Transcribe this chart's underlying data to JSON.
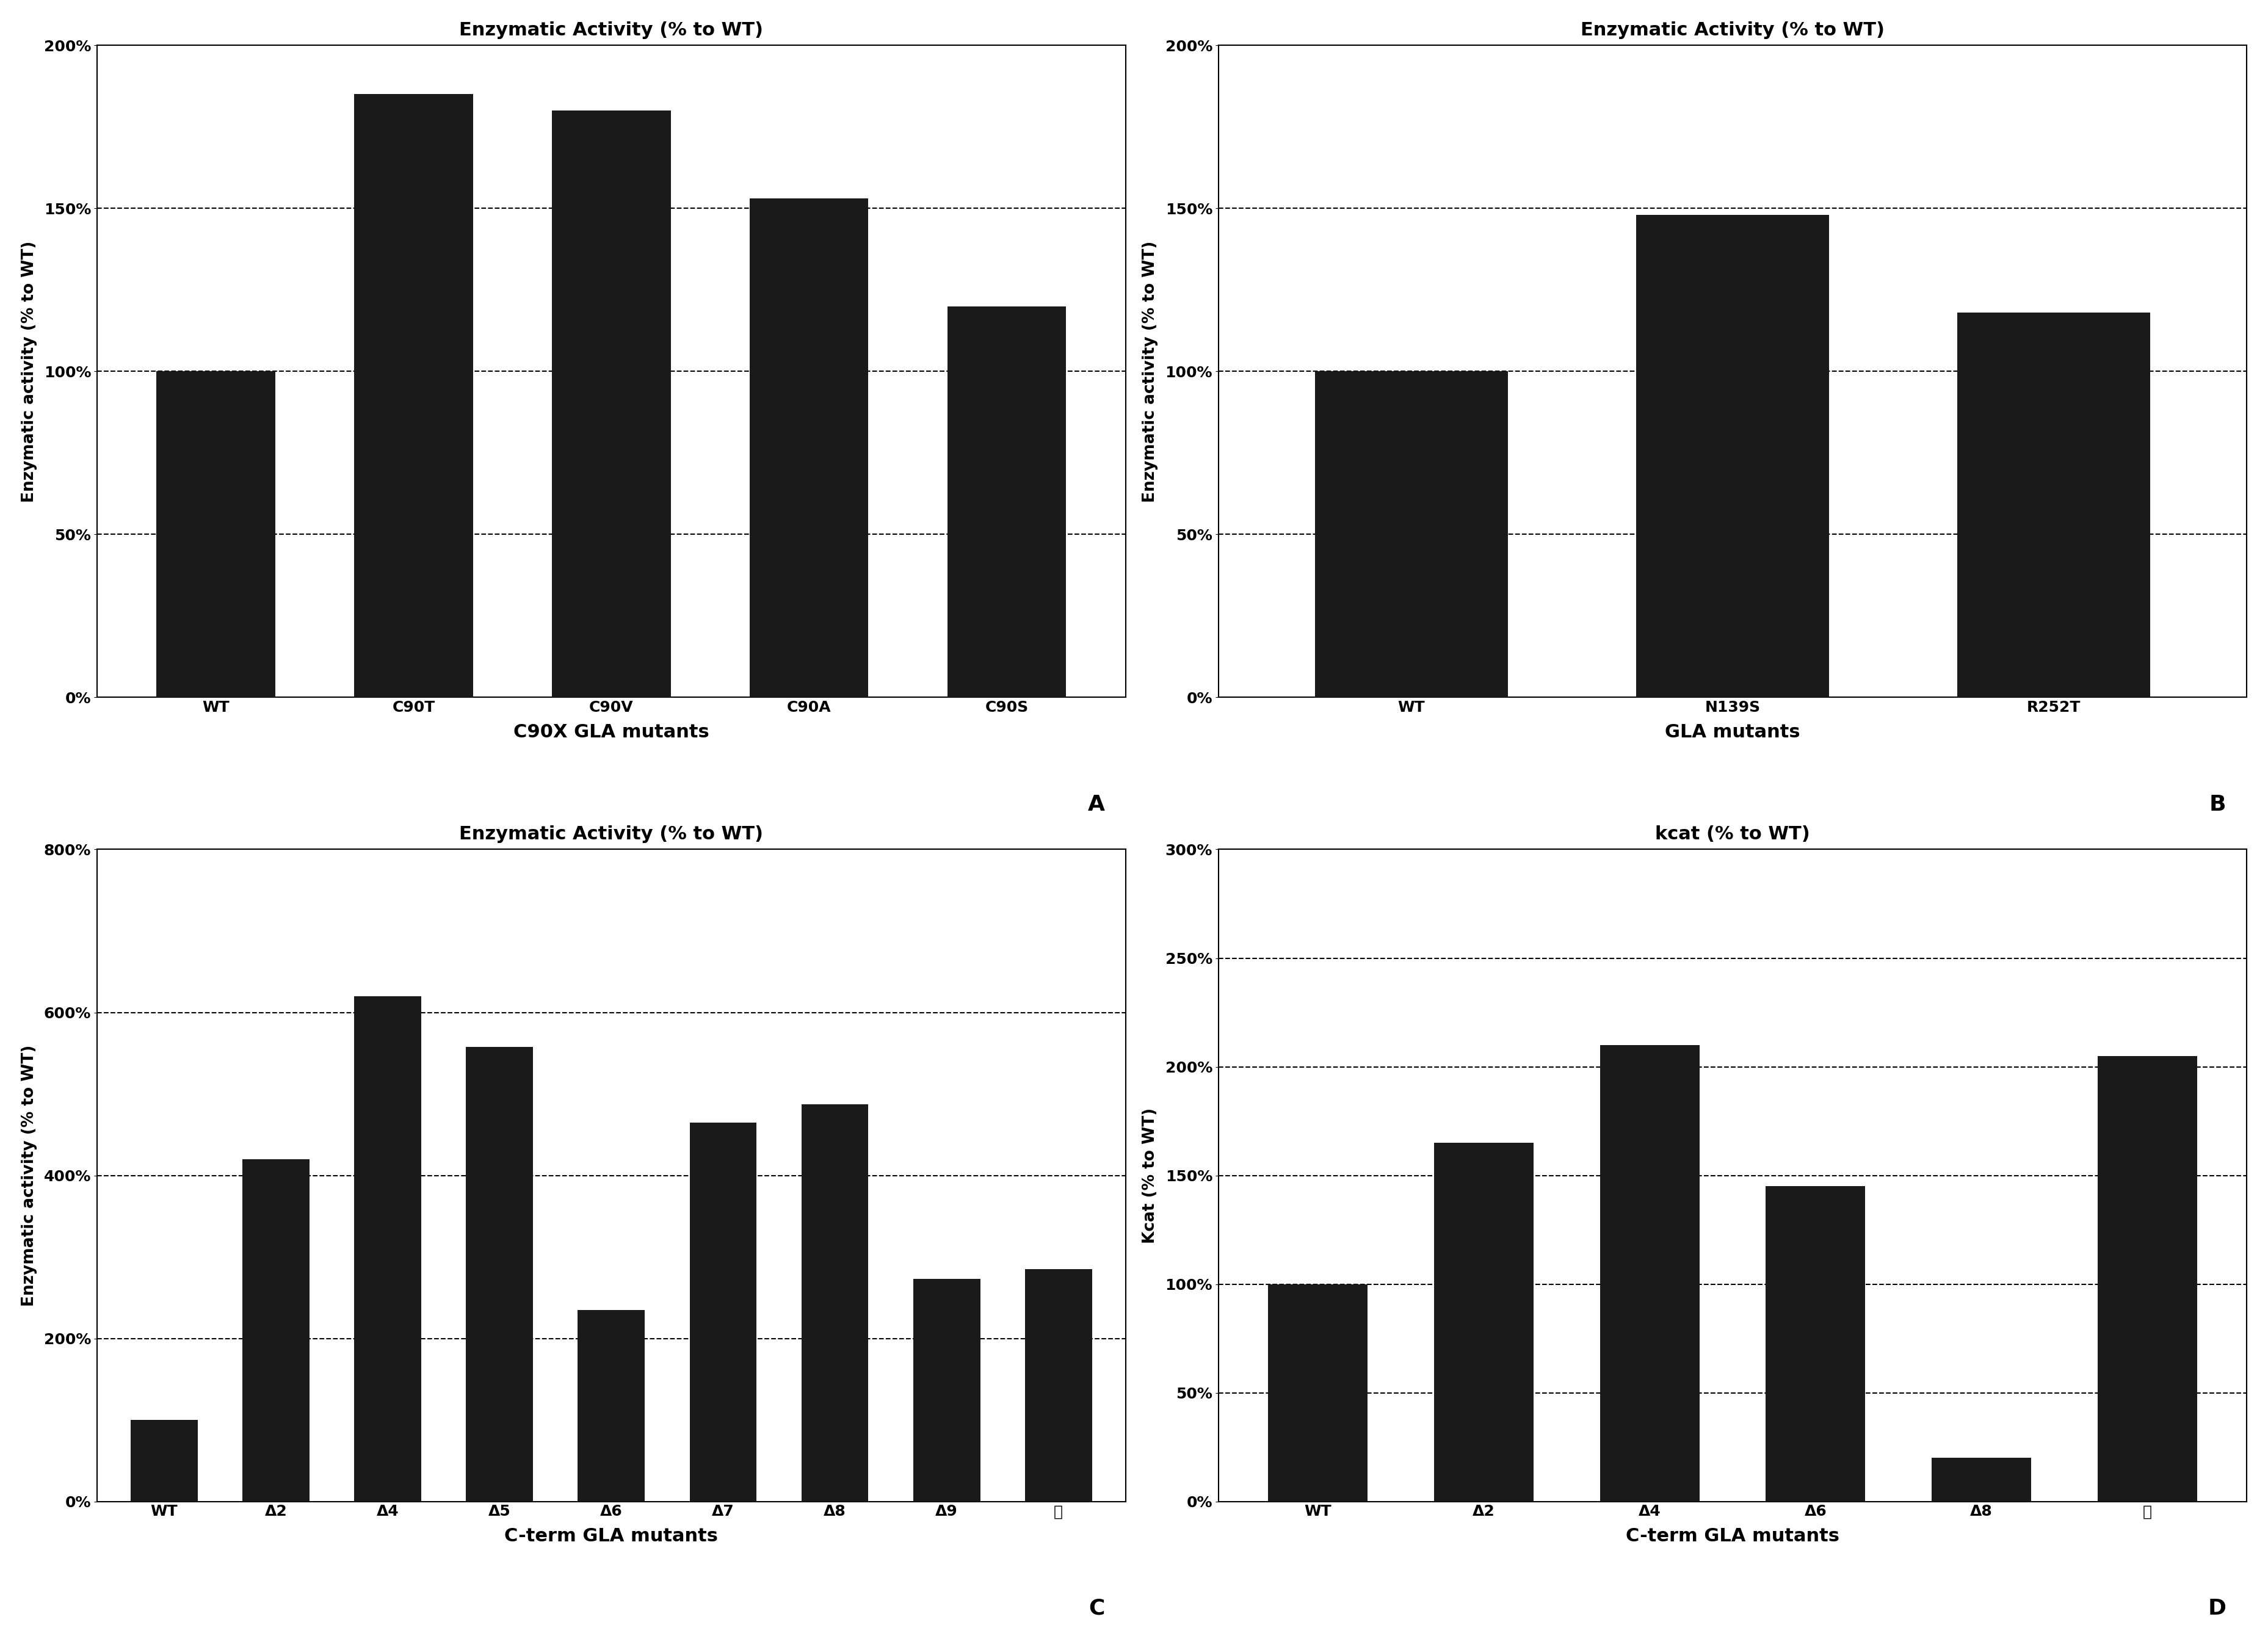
{
  "panel_A": {
    "title": "Enzymatic Activity (% to WT)",
    "xlabel": "C90X GLA mutants",
    "ylabel": "Enzymatic activity (% to WT)",
    "label": "A",
    "categories": [
      "WT",
      "C90T",
      "C90V",
      "C90A",
      "C90S"
    ],
    "values": [
      100,
      185,
      180,
      153,
      120
    ],
    "ylim": [
      0,
      200
    ],
    "yticks": [
      0,
      50,
      100,
      150,
      200
    ],
    "grid_ticks": [
      50,
      100,
      150
    ]
  },
  "panel_B": {
    "title": "Enzymatic Activity (% to WT)",
    "xlabel": "GLA mutants",
    "ylabel": "Enzymatic activity (% to WT)",
    "label": "B",
    "categories": [
      "WT",
      "N139S",
      "R252T"
    ],
    "values": [
      100,
      148,
      118
    ],
    "ylim": [
      0,
      200
    ],
    "yticks": [
      0,
      50,
      100,
      150,
      200
    ],
    "grid_ticks": [
      50,
      100,
      150
    ]
  },
  "panel_C": {
    "title": "Enzymatic Activity (% to WT)",
    "xlabel": "C-term GLA mutants",
    "ylabel": "Enzymatic activity (% to WT)",
    "label": "C",
    "categories": [
      "WT",
      "Δ2",
      "Δ4",
      "Δ5",
      "Δ6",
      "Δ7",
      "Δ8",
      "Δ9",
      "㥊"
    ],
    "values": [
      100,
      420,
      620,
      558,
      235,
      465,
      487,
      273,
      285
    ],
    "ylim": [
      0,
      800
    ],
    "yticks": [
      0,
      200,
      400,
      600,
      800
    ],
    "grid_ticks": [
      200,
      400,
      600
    ]
  },
  "panel_D": {
    "title": "kcat (% to WT)",
    "xlabel": "C-term GLA mutants",
    "ylabel": "Kcat (% to WT)",
    "label": "D",
    "categories": [
      "WT",
      "Δ2",
      "Δ4",
      "Δ6",
      "Δ8",
      "㥊"
    ],
    "values": [
      100,
      165,
      210,
      145,
      20,
      205
    ],
    "ylim": [
      0,
      300
    ],
    "yticks": [
      0,
      50,
      100,
      150,
      200,
      250,
      300
    ],
    "grid_ticks": [
      50,
      100,
      150,
      200,
      250
    ]
  },
  "bar_color": "#1a1a1a",
  "background_color": "#ffffff",
  "grid_color": "#000000",
  "title_fontsize": 22,
  "label_fontsize": 19,
  "tick_fontsize": 18,
  "axis_label_fontsize": 19,
  "panel_label_fontsize": 26
}
